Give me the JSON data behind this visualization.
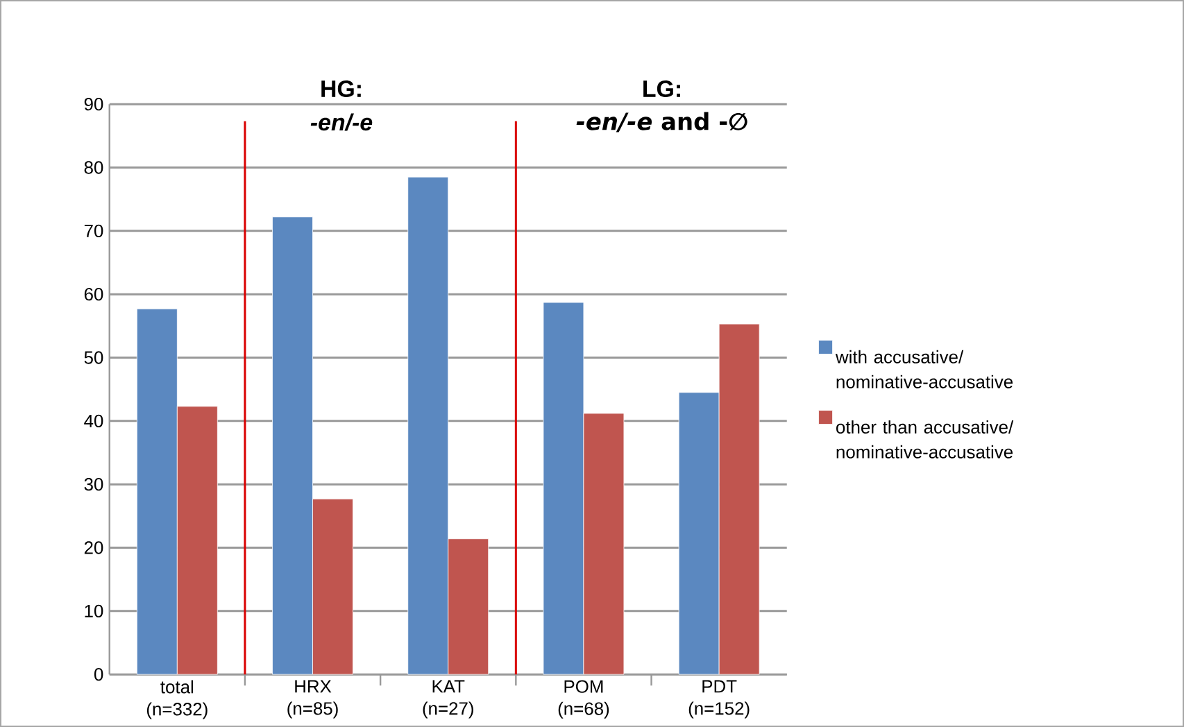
{
  "chart_data": {
    "type": "bar",
    "categories": [
      "total (n=332)",
      "HRX (n=85)",
      "KAT (n=27)",
      "POM (n=68)",
      "PDT (n=152)"
    ],
    "series": [
      {
        "name": "with accusative/ nominative-accusative",
        "color": "#5b88c0",
        "values": [
          57.7,
          72.2,
          78.5,
          58.7,
          44.5
        ]
      },
      {
        "name": "other than accusative/ nominative-accusative",
        "color": "#c0554f",
        "values": [
          42.3,
          27.7,
          21.4,
          41.2,
          55.3
        ]
      }
    ],
    "ylim": [
      0,
      90
    ],
    "yticks": [
      0,
      10,
      20,
      30,
      40,
      50,
      60,
      70,
      80,
      90
    ],
    "grid": "y",
    "legend": "right",
    "annotations": [
      "HG:",
      "-en/-e",
      "LG:",
      "*-en/-e* and -∅"
    ]
  }
}
